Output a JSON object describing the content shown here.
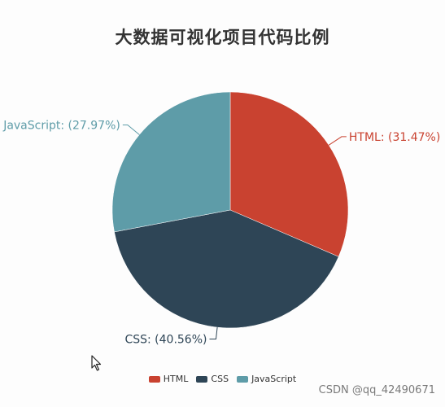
{
  "chart_data": {
    "type": "pie",
    "title": "大数据可视化项目代码比例",
    "categories": [
      "HTML",
      "CSS",
      "JavaScript"
    ],
    "values": [
      31.47,
      40.56,
      27.97
    ],
    "labels": [
      "HTML: (31.47%)",
      "CSS: (40.56%)",
      "JavaScript: (27.97%)"
    ],
    "colors": [
      "#c94230",
      "#2e4556",
      "#5e9ca8"
    ],
    "legend_position": "bottom",
    "start_angle_degrees": 90,
    "direction": "clockwise"
  },
  "legend": {
    "items": [
      {
        "label": "HTML",
        "color": "#c94230"
      },
      {
        "label": "CSS",
        "color": "#2e4556"
      },
      {
        "label": "JavaScript",
        "color": "#5e9ca8"
      }
    ]
  },
  "watermark": {
    "text": "CSDN @qq_42490671"
  },
  "cursor": {
    "icon": "mouse-pointer-icon"
  }
}
